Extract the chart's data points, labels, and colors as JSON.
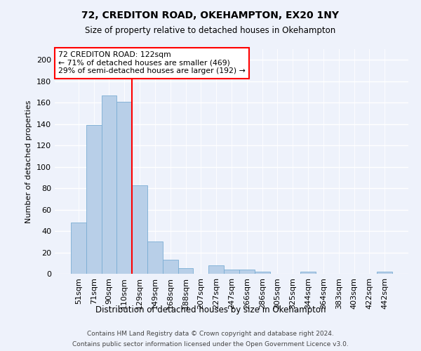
{
  "title1": "72, CREDITON ROAD, OKEHAMPTON, EX20 1NY",
  "title2": "Size of property relative to detached houses in Okehampton",
  "xlabel": "Distribution of detached houses by size in Okehampton",
  "ylabel": "Number of detached properties",
  "categories": [
    "51sqm",
    "71sqm",
    "90sqm",
    "110sqm",
    "129sqm",
    "149sqm",
    "168sqm",
    "188sqm",
    "207sqm",
    "227sqm",
    "247sqm",
    "266sqm",
    "286sqm",
    "305sqm",
    "325sqm",
    "344sqm",
    "364sqm",
    "383sqm",
    "403sqm",
    "422sqm",
    "442sqm"
  ],
  "values": [
    48,
    139,
    167,
    161,
    83,
    30,
    13,
    5,
    0,
    8,
    4,
    4,
    2,
    0,
    0,
    2,
    0,
    0,
    0,
    0,
    2
  ],
  "bar_color": "#b8cfe8",
  "bar_edge_color": "#7aadd4",
  "vline_x": 3.5,
  "vline_color": "red",
  "annotation_title": "72 CREDITON ROAD: 122sqm",
  "annotation_line1": "← 71% of detached houses are smaller (469)",
  "annotation_line2": "29% of semi-detached houses are larger (192) →",
  "annotation_box_color": "white",
  "annotation_box_edge": "red",
  "ylim": [
    0,
    210
  ],
  "yticks": [
    0,
    20,
    40,
    60,
    80,
    100,
    120,
    140,
    160,
    180,
    200
  ],
  "footer1": "Contains HM Land Registry data © Crown copyright and database right 2024.",
  "footer2": "Contains public sector information licensed under the Open Government Licence v3.0.",
  "bg_color": "#eef2fb"
}
